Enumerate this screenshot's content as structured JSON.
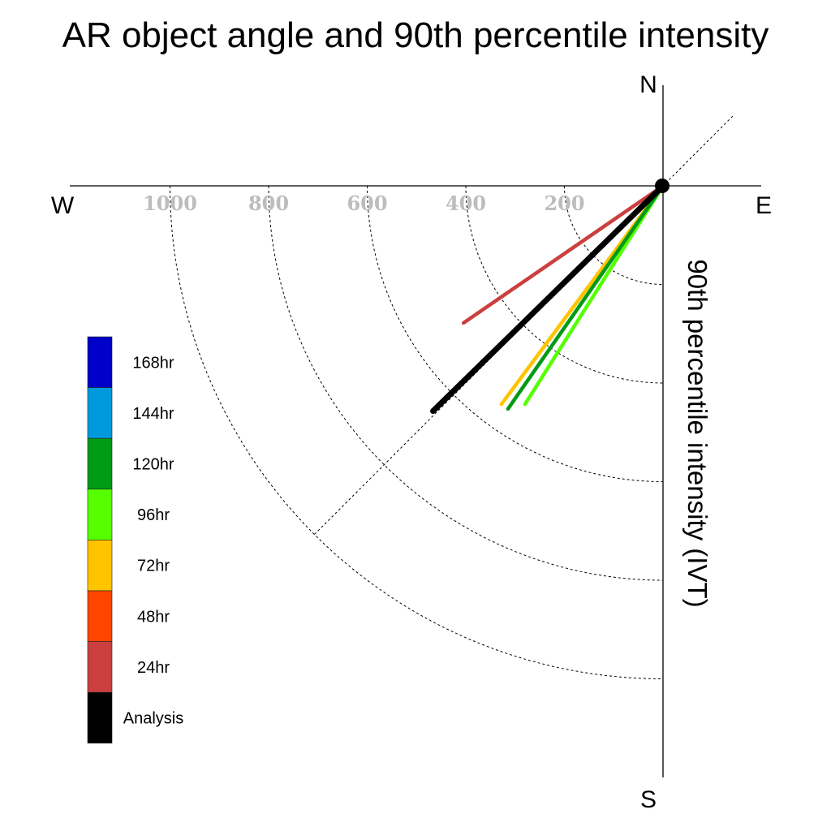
{
  "chart_data": {
    "type": "polar-vector",
    "title": "AR object angle and 90th percentile intensity",
    "ylabel": "90th percentile intensity (IVT)",
    "compass": {
      "north": "N",
      "south": "S",
      "east": "E",
      "west": "W"
    },
    "radial_ticks": [
      "200",
      "400",
      "600",
      "800",
      "1000"
    ],
    "radial_values": [
      200,
      400,
      600,
      800,
      1000
    ],
    "rmax": 1200,
    "grid": true,
    "legend_position": "left",
    "series": [
      {
        "name": "Analysis",
        "color": "#000000",
        "angle_deg": 225.6,
        "intensity": 653
      },
      {
        "name": "24hr",
        "color": "#cc3f3f",
        "angle_deg": 235.5,
        "intensity": 491
      },
      {
        "name": "48hr",
        "color": "#ff4500",
        "angle_deg": 225.4,
        "intensity": 611
      },
      {
        "name": "72hr",
        "color": "#ffc400",
        "angle_deg": 216.5,
        "intensity": 551
      },
      {
        "name": "96hr",
        "color": "#55ff00",
        "angle_deg": 212.3,
        "intensity": 524
      },
      {
        "name": "120hr",
        "color": "#009a14",
        "angle_deg": 214.8,
        "intensity": 551
      },
      {
        "name": "144hr",
        "color": "#0099dd",
        "angle_deg": null,
        "intensity": null
      },
      {
        "name": "168hr",
        "color": "#0000c8",
        "angle_deg": null,
        "intensity": null
      }
    ]
  }
}
